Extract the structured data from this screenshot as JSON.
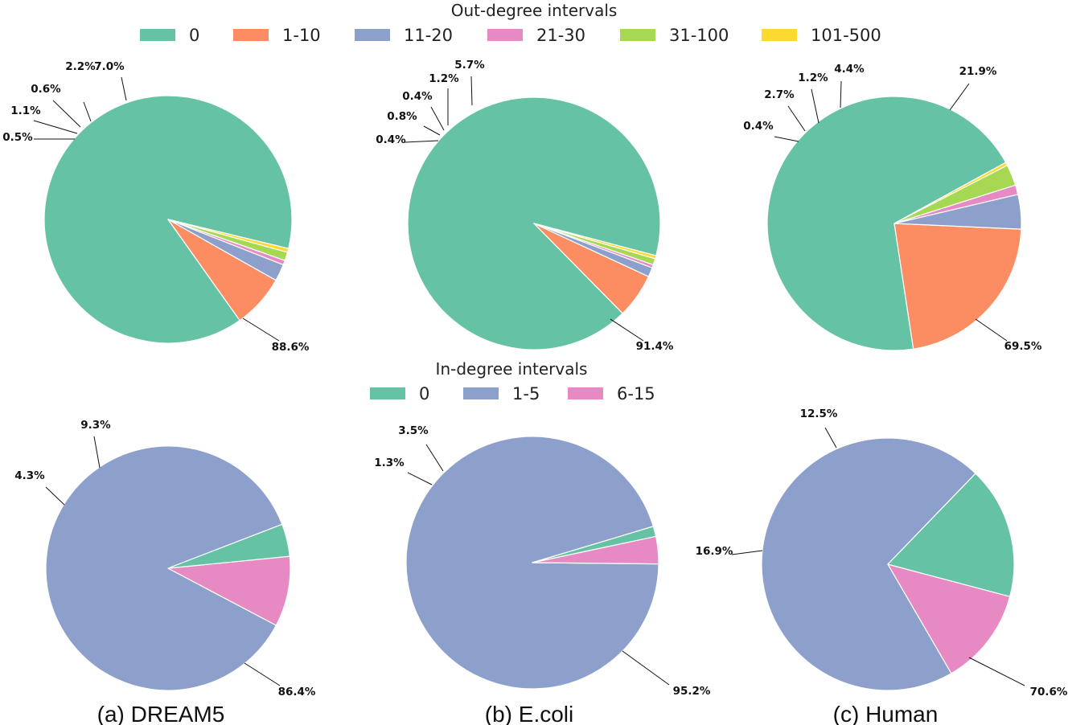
{
  "legends": {
    "out": {
      "title": "Out-degree intervals",
      "entries": [
        {
          "label": "0",
          "color": "#66c2a5"
        },
        {
          "label": "1-10",
          "color": "#fc8d62"
        },
        {
          "label": "11-20",
          "color": "#8da0cb"
        },
        {
          "label": "21-30",
          "color": "#e78ac3"
        },
        {
          "label": "31-100",
          "color": "#a6d854"
        },
        {
          "label": "101-500",
          "color": "#ffd92f"
        }
      ]
    },
    "in": {
      "title": "In-degree intervals",
      "entries": [
        {
          "label": "0",
          "color": "#66c2a5"
        },
        {
          "label": "1-5",
          "color": "#8da0cb"
        },
        {
          "label": "6-15",
          "color": "#e78ac3"
        }
      ]
    }
  },
  "captions": [
    "(a) DREAM5",
    "(b) E.coli",
    "(c) Human"
  ],
  "chart_data": [
    {
      "type": "pie",
      "dataset": "(a) DREAM5",
      "legend": "Out-degree intervals",
      "categories": [
        "0",
        "1-10",
        "11-20",
        "21-30",
        "31-100",
        "101-500"
      ],
      "values": [
        88.6,
        7.0,
        2.2,
        0.6,
        1.1,
        0.5
      ],
      "labels": [
        "88.6%",
        "7.0%",
        "2.2%",
        "0.6%",
        "1.1%",
        "0.5%"
      ]
    },
    {
      "type": "pie",
      "dataset": "(b) E.coli",
      "legend": "Out-degree intervals",
      "categories": [
        "0",
        "1-10",
        "11-20",
        "21-30",
        "31-100",
        "101-500"
      ],
      "values": [
        91.4,
        5.7,
        1.2,
        0.4,
        0.8,
        0.4
      ],
      "labels": [
        "91.4%",
        "5.7%",
        "1.2%",
        "0.4%",
        "0.8%",
        "0.4%"
      ]
    },
    {
      "type": "pie",
      "dataset": "(c) Human",
      "legend": "Out-degree intervals",
      "categories": [
        "0",
        "1-10",
        "11-20",
        "21-30",
        "31-100",
        "101-500"
      ],
      "values": [
        69.5,
        21.9,
        4.4,
        1.2,
        2.7,
        0.4
      ],
      "labels": [
        "69.5%",
        "21.9%",
        "4.4%",
        "1.2%",
        "2.7%",
        "0.4%"
      ]
    },
    {
      "type": "pie",
      "dataset": "(a) DREAM5",
      "legend": "In-degree intervals",
      "categories": [
        "1-5",
        "6-15",
        "0"
      ],
      "values": [
        86.4,
        9.3,
        4.3
      ],
      "labels": [
        "86.4%",
        "9.3%",
        "4.3%"
      ]
    },
    {
      "type": "pie",
      "dataset": "(b) E.coli",
      "legend": "In-degree intervals",
      "categories": [
        "1-5",
        "6-15",
        "0"
      ],
      "values": [
        95.2,
        3.5,
        1.3
      ],
      "labels": [
        "95.2%",
        "3.5%",
        "1.3%"
      ]
    },
    {
      "type": "pie",
      "dataset": "(c) Human",
      "legend": "In-degree intervals",
      "categories": [
        "1-5",
        "6-15",
        "0"
      ],
      "values": [
        70.6,
        12.5,
        16.9
      ],
      "labels": [
        "70.6%",
        "12.5%",
        "16.9%"
      ]
    }
  ]
}
